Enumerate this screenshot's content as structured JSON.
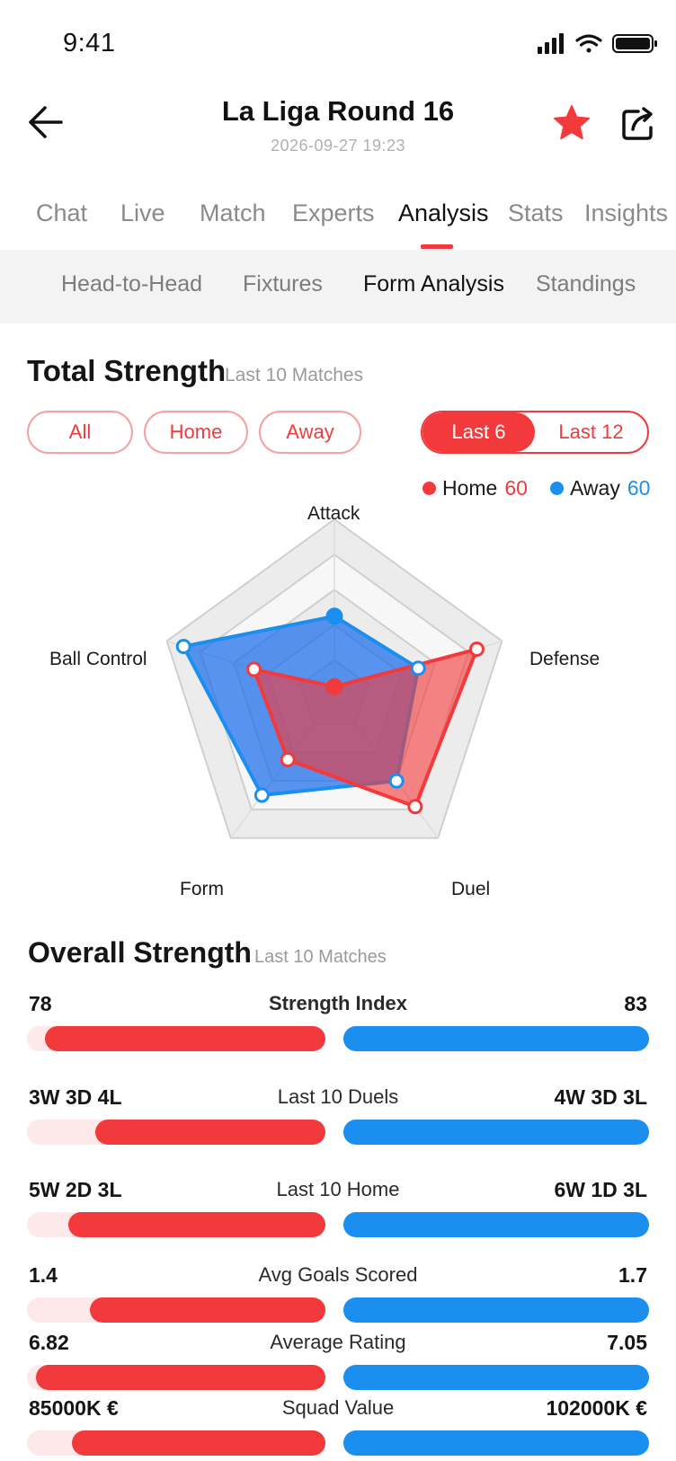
{
  "status": {
    "time": "9:41"
  },
  "header": {
    "title": "La Liga Round 16",
    "datetime": "2026-09-27  19:23"
  },
  "main_tabs": [
    {
      "label": "Chat",
      "active": false
    },
    {
      "label": "Live",
      "active": false
    },
    {
      "label": "Match",
      "active": false
    },
    {
      "label": "Experts",
      "active": false
    },
    {
      "label": "Analysis",
      "active": true
    },
    {
      "label": "Stats",
      "active": false
    },
    {
      "label": "Insights",
      "active": false
    }
  ],
  "sub_tabs": [
    {
      "label": "Head-to-Head",
      "active": false
    },
    {
      "label": "Fixtures",
      "active": false
    },
    {
      "label": "Form Analysis",
      "active": true
    },
    {
      "label": "Standings",
      "active": false
    }
  ],
  "total_strength": {
    "title": "Total Strength",
    "subtitle": "Last 10 Matches",
    "filters": [
      "All",
      "Home",
      "Away"
    ],
    "range_options": [
      "Last 6",
      "Last 12"
    ],
    "range_selected": "Last 6"
  },
  "legend": {
    "home_label": "Home",
    "home_value": "60",
    "away_label": "Away",
    "away_value": "60"
  },
  "colors": {
    "home": "#f23a3c",
    "away": "#1a8ff0"
  },
  "radar": {
    "axes": [
      "Attack",
      "Defense",
      "Duel",
      "Form",
      "Ball Control"
    ],
    "home": [
      0.05,
      0.85,
      0.78,
      0.45,
      0.48
    ],
    "away": [
      0.45,
      0.5,
      0.6,
      0.7,
      0.9
    ]
  },
  "overall_strength": {
    "title": "Overall Strength",
    "subtitle": "Last 10 Matches",
    "rows": [
      {
        "name": "Strength Index",
        "home": "78",
        "away": "83",
        "home_pct": 0.94,
        "away_pct": 1.0,
        "bold": true
      },
      {
        "name": "Last 10 Duels",
        "home": "3W 3D 4L",
        "away": "4W 3D 3L",
        "home_pct": 0.77,
        "away_pct": 1.0,
        "bold": false
      },
      {
        "name": "Last 10 Home",
        "home": "5W 2D 3L",
        "away": "6W 1D 3L",
        "home_pct": 0.86,
        "away_pct": 1.0,
        "bold": false
      },
      {
        "name": "Avg Goals Scored",
        "home": "1.4",
        "away": "1.7",
        "home_pct": 0.79,
        "away_pct": 1.0,
        "bold": false
      },
      {
        "name": "Average Rating",
        "home": "6.82",
        "away": "7.05",
        "home_pct": 0.97,
        "away_pct": 1.0,
        "bold": false
      },
      {
        "name": "Squad Value",
        "home": "85000K €",
        "away": "102000K €",
        "home_pct": 0.85,
        "away_pct": 1.0,
        "bold": false
      }
    ]
  },
  "icons": {
    "back": "arrow-left-icon",
    "favorite": "star-icon",
    "share": "share-icon"
  }
}
